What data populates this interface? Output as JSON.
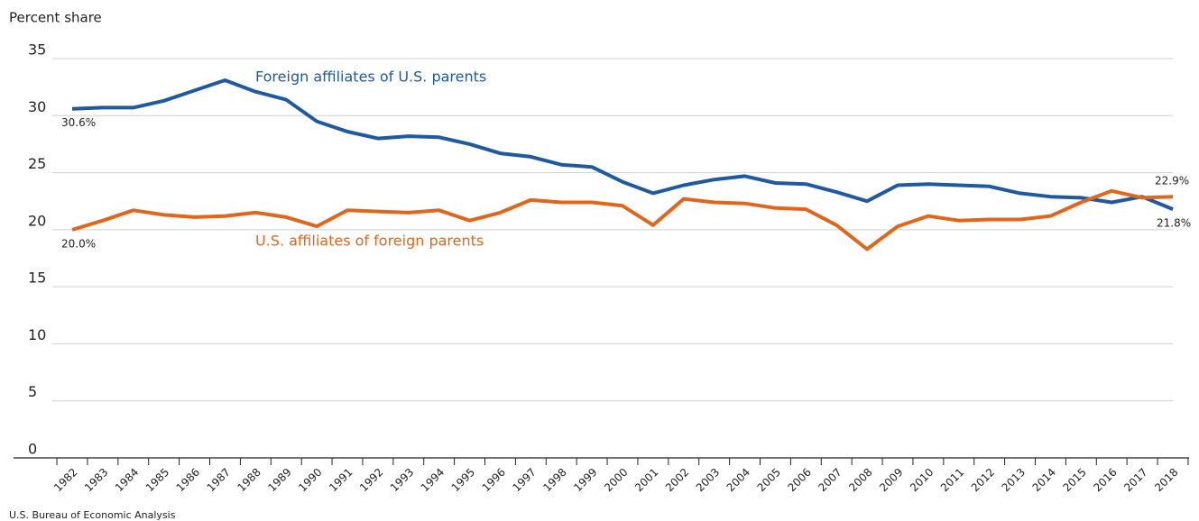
{
  "chart_data": {
    "type": "line",
    "y_axis_label": "Percent share",
    "source": "U.S. Bureau of Economic Analysis",
    "categories": [
      "1982",
      "1983",
      "1984",
      "1985",
      "1986",
      "1987",
      "1988",
      "1989",
      "1990",
      "1991",
      "1992",
      "1993",
      "1994",
      "1995",
      "1996",
      "1997",
      "1998",
      "1999",
      "2000",
      "2001",
      "2002",
      "2003",
      "2004",
      "2005",
      "2006",
      "2007",
      "2008",
      "2009",
      "2010",
      "2011",
      "2012",
      "2013",
      "2014",
      "2015",
      "2016",
      "2017",
      "2018"
    ],
    "series": [
      {
        "name": "Foreign affiliates of U.S. parents",
        "color": "#1f5aa0",
        "values": [
          30.6,
          30.7,
          30.7,
          31.3,
          32.2,
          33.1,
          32.1,
          31.4,
          29.5,
          28.6,
          28.0,
          28.2,
          28.1,
          27.5,
          26.7,
          26.4,
          25.7,
          25.5,
          24.2,
          23.2,
          23.9,
          24.4,
          24.7,
          24.1,
          24.0,
          23.3,
          22.5,
          23.9,
          24.0,
          23.9,
          23.8,
          23.2,
          22.9,
          22.8,
          22.4,
          22.9,
          21.8
        ],
        "value_labels": [
          "30.6%",
          null,
          null,
          null,
          null,
          null,
          null,
          null,
          null,
          null,
          null,
          null,
          null,
          null,
          null,
          null,
          null,
          null,
          null,
          null,
          null,
          null,
          null,
          null,
          null,
          null,
          null,
          null,
          null,
          null,
          null,
          null,
          null,
          null,
          null,
          null,
          "21.8%"
        ]
      },
      {
        "name": "U.S. affiliates of foreign parents",
        "color": "#e0661c",
        "values": [
          20.0,
          20.8,
          21.7,
          21.3,
          21.1,
          21.2,
          21.5,
          21.1,
          20.3,
          21.7,
          21.6,
          21.5,
          21.7,
          20.8,
          21.5,
          22.6,
          22.4,
          22.4,
          22.1,
          20.4,
          22.7,
          22.4,
          22.3,
          21.9,
          21.8,
          20.4,
          18.3,
          20.3,
          21.2,
          20.8,
          20.9,
          20.9,
          21.2,
          22.4,
          23.4,
          22.8,
          22.9
        ],
        "value_labels": [
          "20.0%",
          null,
          null,
          null,
          null,
          null,
          null,
          null,
          null,
          null,
          null,
          null,
          null,
          null,
          null,
          null,
          null,
          null,
          null,
          null,
          null,
          null,
          null,
          null,
          null,
          null,
          null,
          null,
          null,
          null,
          null,
          null,
          null,
          null,
          null,
          null,
          "22.9%"
        ]
      }
    ],
    "ylim": [
      0,
      35
    ],
    "yticks": [
      0,
      5,
      10,
      15,
      20,
      25,
      30,
      35
    ],
    "grid": true
  }
}
